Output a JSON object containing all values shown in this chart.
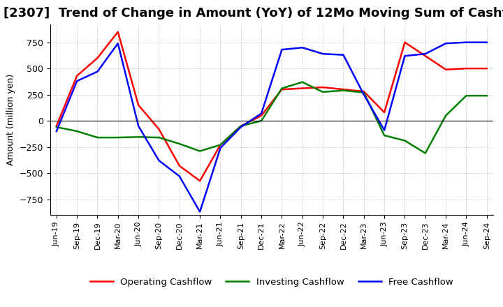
{
  "title": "[2307]  Trend of Change in Amount (YoY) of 12Mo Moving Sum of Cashflows",
  "ylabel": "Amount (million yen)",
  "ylim": [
    -900,
    920
  ],
  "yticks": [
    -750,
    -500,
    -250,
    0,
    250,
    500,
    750
  ],
  "x_labels": [
    "Jun-19",
    "Sep-19",
    "Dec-19",
    "Mar-20",
    "Jun-20",
    "Sep-20",
    "Dec-20",
    "Mar-21",
    "Jun-21",
    "Sep-21",
    "Dec-21",
    "Mar-22",
    "Jun-22",
    "Sep-22",
    "Dec-22",
    "Mar-23",
    "Jun-23",
    "Sep-23",
    "Dec-23",
    "Mar-24",
    "Jun-24",
    "Sep-24"
  ],
  "operating": [
    -50,
    430,
    600,
    850,
    150,
    -80,
    -430,
    -575,
    -230,
    -50,
    50,
    300,
    310,
    320,
    300,
    280,
    80,
    750,
    620,
    490,
    500,
    500
  ],
  "investing": [
    -60,
    -100,
    -160,
    -160,
    -155,
    -160,
    -220,
    -290,
    -230,
    -50,
    0,
    310,
    370,
    275,
    290,
    270,
    -140,
    -190,
    -310,
    50,
    240,
    240
  ],
  "free": [
    -100,
    380,
    470,
    740,
    -50,
    -380,
    -530,
    -870,
    -260,
    -60,
    70,
    680,
    700,
    640,
    630,
    250,
    -90,
    620,
    640,
    740,
    750,
    750
  ],
  "operating_color": "#FF0000",
  "investing_color": "#008000",
  "free_color": "#0000FF",
  "background_color": "#FFFFFF",
  "title_fontsize": 13,
  "legend_labels": [
    "Operating Cashflow",
    "Investing Cashflow",
    "Free Cashflow"
  ]
}
